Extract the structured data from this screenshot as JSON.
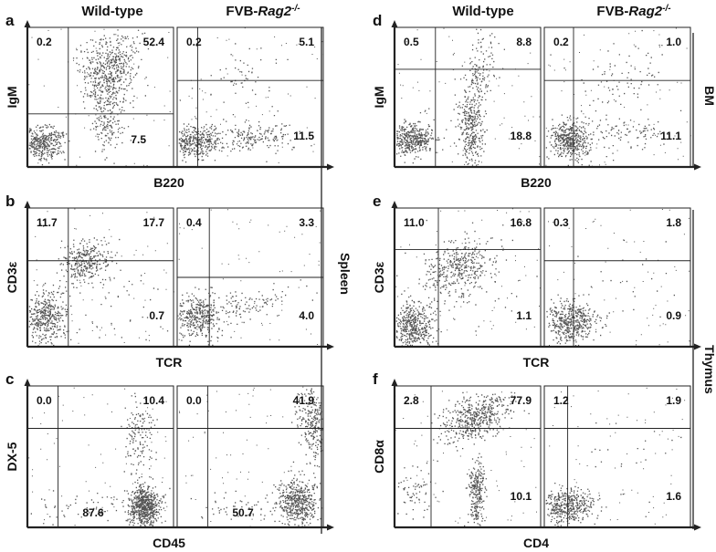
{
  "figure": {
    "column_headers": {
      "wild_type": "Wild-type",
      "fvb_prefix": "FVB-",
      "fvb_gene": "Rag2",
      "fvb_sup": "-/-"
    },
    "tissue_labels": {
      "spleen": "Spleen",
      "bm": "BM",
      "thymus": "Thymus"
    },
    "panels": [
      {
        "id": "a",
        "letter": "a",
        "xlabel": "B220",
        "ylabel": "IgM",
        "tissue": "Spleen",
        "plots": [
          {
            "genotype": "Wild-type",
            "quadrants": {
              "ul": "0.2",
              "ur": "52.4",
              "lr": "7.5"
            }
          },
          {
            "genotype": "FVB-Rag2-/-",
            "quadrants": {
              "ul": "0.2",
              "ur": "5.1",
              "lr": "11.5"
            }
          }
        ]
      },
      {
        "id": "b",
        "letter": "b",
        "xlabel": "TCR",
        "ylabel": "CD3ε",
        "tissue": "Spleen",
        "plots": [
          {
            "genotype": "Wild-type",
            "quadrants": {
              "ul": "11.7",
              "ur": "17.7",
              "lr": "0.7"
            }
          },
          {
            "genotype": "FVB-Rag2-/-",
            "quadrants": {
              "ul": "0.4",
              "ur": "3.3",
              "lr": "4.0"
            }
          }
        ]
      },
      {
        "id": "c",
        "letter": "c",
        "xlabel": "CD45",
        "ylabel": "DX-5",
        "tissue": "Spleen",
        "plots": [
          {
            "genotype": "Wild-type",
            "quadrants": {
              "ul": "0.0",
              "ur": "10.4",
              "lr": "87.6"
            }
          },
          {
            "genotype": "FVB-Rag2-/-",
            "quadrants": {
              "ul": "0.0",
              "ur": "41.9",
              "lr": "50.7"
            }
          }
        ]
      },
      {
        "id": "d",
        "letter": "d",
        "xlabel": "B220",
        "ylabel": "IgM",
        "tissue": "BM",
        "plots": [
          {
            "genotype": "Wild-type",
            "quadrants": {
              "ul": "0.5",
              "ur": "8.8",
              "lr": "18.8"
            }
          },
          {
            "genotype": "FVB-Rag2-/-",
            "quadrants": {
              "ul": "0.2",
              "ur": "1.0",
              "lr": "11.1"
            }
          }
        ]
      },
      {
        "id": "e",
        "letter": "e",
        "xlabel": "TCR",
        "ylabel": "CD3ε",
        "tissue": "Thymus",
        "plots": [
          {
            "genotype": "Wild-type",
            "quadrants": {
              "ul": "11.0",
              "ur": "16.8",
              "lr": "1.1"
            }
          },
          {
            "genotype": "FVB-Rag2-/-",
            "quadrants": {
              "ul": "0.3",
              "ur": "1.8",
              "lr": "0.9"
            }
          }
        ]
      },
      {
        "id": "f",
        "letter": "f",
        "xlabel": "CD4",
        "ylabel": "CD8α",
        "tissue": "Thymus",
        "plots": [
          {
            "genotype": "Wild-type",
            "quadrants": {
              "ul": "2.8",
              "ur": "77.9",
              "lr": "10.1"
            }
          },
          {
            "genotype": "FVB-Rag2-/-",
            "quadrants": {
              "ul": "1.2",
              "ur": "1.9",
              "lr": "1.6"
            }
          }
        ]
      }
    ]
  },
  "colors": {
    "ink": "#111111",
    "dots": "#555555",
    "frame": "#222222"
  }
}
